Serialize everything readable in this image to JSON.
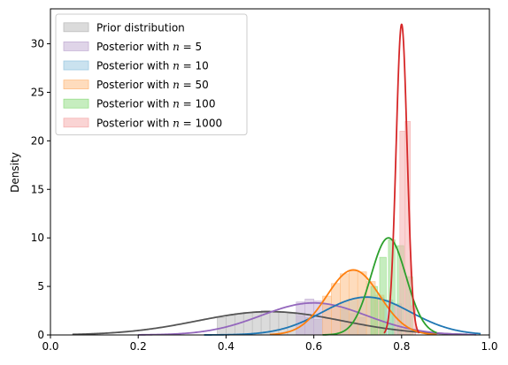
{
  "chart_data": {
    "type": "histogram-kde",
    "title": "",
    "xlabel": "",
    "ylabel": "Density",
    "xlim": [
      0.0,
      1.0
    ],
    "ylim": [
      0,
      33.6
    ],
    "xticks": [
      0.0,
      0.2,
      0.4,
      0.6,
      0.8,
      1.0
    ],
    "xtick_labels": [
      "0.0",
      "0.2",
      "0.4",
      "0.6",
      "0.8",
      "1.0"
    ],
    "yticks": [
      0,
      5,
      10,
      15,
      20,
      25,
      30
    ],
    "ytick_labels": [
      "0",
      "5",
      "10",
      "15",
      "20",
      "25",
      "30"
    ],
    "grid": false,
    "legend_position": "top-left",
    "series": [
      {
        "name": "Prior distribution",
        "legend_prefix": "Prior distribution",
        "legend_n": "",
        "color": "#555555",
        "fill": "#bdbdbd",
        "kde_mean": 0.5,
        "kde_sd": 0.165,
        "kde_peak": 2.4,
        "kde_range": [
          0.05,
          0.95
        ],
        "hist_bins": [
          [
            0.38,
            1.8
          ],
          [
            0.4,
            2.0
          ],
          [
            0.42,
            2.2
          ],
          [
            0.44,
            2.3
          ],
          [
            0.46,
            2.4
          ],
          [
            0.48,
            2.5
          ],
          [
            0.5,
            2.4
          ],
          [
            0.52,
            2.3
          ],
          [
            0.54,
            2.2
          ],
          [
            0.56,
            2.0
          ],
          [
            0.58,
            1.8
          ],
          [
            0.6,
            1.6
          ]
        ],
        "hist_width": 0.02
      },
      {
        "name": "Posterior with n = 5",
        "legend_prefix": "Posterior with ",
        "legend_n": "5",
        "color": "#9467bd",
        "fill": "#c5b0d5",
        "kde_mean": 0.6,
        "kde_sd": 0.12,
        "kde_peak": 3.3,
        "kde_range": [
          0.2,
          0.97
        ],
        "hist_bins": [
          [
            0.56,
            3.4
          ],
          [
            0.58,
            3.7
          ],
          [
            0.6,
            3.5
          ],
          [
            0.62,
            3.2
          ],
          [
            0.64,
            2.9
          ],
          [
            0.66,
            2.6
          ],
          [
            0.68,
            2.2
          ],
          [
            0.7,
            1.8
          ]
        ],
        "hist_width": 0.02
      },
      {
        "name": "Posterior with n = 10",
        "legend_prefix": "Posterior with ",
        "legend_n": "10",
        "color": "#1f77b4",
        "fill": "#9ecae1",
        "kde_mean": 0.72,
        "kde_sd": 0.1,
        "kde_peak": 3.9,
        "kde_range": [
          0.35,
          0.98
        ],
        "hist_bins": [
          [
            0.66,
            3.4
          ],
          [
            0.68,
            3.7
          ],
          [
            0.7,
            3.9
          ],
          [
            0.72,
            4.0
          ],
          [
            0.74,
            3.9
          ],
          [
            0.76,
            3.6
          ],
          [
            0.78,
            3.2
          ]
        ],
        "hist_width": 0.02
      },
      {
        "name": "Posterior with n = 50",
        "legend_prefix": "Posterior with ",
        "legend_n": "50",
        "color": "#ff7f0e",
        "fill": "#fdbf86",
        "kde_mean": 0.69,
        "kde_sd": 0.06,
        "kde_peak": 6.7,
        "kde_range": [
          0.5,
          0.88
        ],
        "hist_bins": [
          [
            0.62,
            4.0
          ],
          [
            0.64,
            5.3
          ],
          [
            0.66,
            6.3
          ],
          [
            0.68,
            6.6
          ],
          [
            0.7,
            6.5
          ],
          [
            0.72,
            5.5
          ],
          [
            0.74,
            4.1
          ]
        ],
        "hist_width": 0.02
      },
      {
        "name": "Posterior with n = 100",
        "legend_prefix": "Posterior with ",
        "legend_n": "100",
        "color": "#2ca02c",
        "fill": "#98df8a",
        "kde_mean": 0.77,
        "kde_sd": 0.04,
        "kde_peak": 10.0,
        "kde_range": [
          0.62,
          0.88
        ],
        "hist_bins": [
          [
            0.73,
            5.0
          ],
          [
            0.75,
            8.0
          ],
          [
            0.77,
            9.8
          ],
          [
            0.79,
            9.2
          ],
          [
            0.81,
            6.0
          ]
        ],
        "hist_width": 0.015
      },
      {
        "name": "Posterior with n = 1000",
        "legend_prefix": "Posterior with ",
        "legend_n": "1000",
        "color": "#d62728",
        "fill": "#f5b1b1",
        "kde_mean": 0.8,
        "kde_sd": 0.0125,
        "kde_peak": 32.0,
        "kde_range": [
          0.76,
          0.84
        ],
        "hist_bins": [
          [
            0.784,
            3.0
          ],
          [
            0.796,
            21.0
          ],
          [
            0.808,
            22.0
          ],
          [
            0.82,
            3.0
          ]
        ],
        "hist_width": 0.012
      }
    ]
  }
}
